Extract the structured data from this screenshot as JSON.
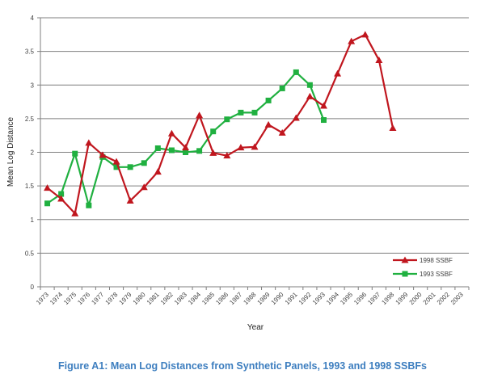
{
  "figure": {
    "caption": "Figure A1:  Mean Log Distances from Synthetic Panels, 1993 and 1998 SSBFs"
  },
  "chart_data": {
    "type": "line",
    "title": "",
    "xlabel": "Year",
    "ylabel": "Mean Log Distance",
    "categories": [
      "1973",
      "1974",
      "1975",
      "1976",
      "1977",
      "1978",
      "1979",
      "1980",
      "1981",
      "1982",
      "1983",
      "1984",
      "1985",
      "1986",
      "1987",
      "1988",
      "1989",
      "1990",
      "1991",
      "1992",
      "1993",
      "1994",
      "1995",
      "1996",
      "1997",
      "1998",
      "1999",
      "2000",
      "2001",
      "2002",
      "2003"
    ],
    "yticks": [
      "0",
      "0.5",
      "1",
      "1.5",
      "2",
      "2.5",
      "3",
      "3.5",
      "4"
    ],
    "ylim": [
      0,
      4
    ],
    "grid": "horizontal",
    "legend_position": "bottom-right",
    "series": [
      {
        "name": "1998 SSBF",
        "color": "#c0161e",
        "marker": "triangle",
        "values": [
          1.47,
          1.31,
          1.09,
          2.14,
          1.96,
          1.86,
          1.28,
          1.48,
          1.71,
          2.28,
          2.07,
          2.55,
          1.99,
          1.95,
          2.07,
          2.08,
          2.41,
          2.29,
          2.51,
          2.83,
          2.69,
          3.17,
          3.65,
          3.75,
          3.37,
          2.36,
          null,
          null,
          null,
          null,
          null
        ]
      },
      {
        "name": "1993 SSBF",
        "color": "#20b040",
        "marker": "square",
        "values": [
          1.24,
          1.38,
          1.98,
          1.21,
          1.93,
          1.78,
          1.78,
          1.84,
          2.06,
          2.03,
          2.0,
          2.02,
          2.31,
          2.49,
          2.59,
          2.59,
          2.77,
          2.95,
          3.19,
          3.0,
          2.48,
          null,
          null,
          null,
          null,
          null,
          null,
          null,
          null,
          null,
          null
        ]
      }
    ]
  }
}
